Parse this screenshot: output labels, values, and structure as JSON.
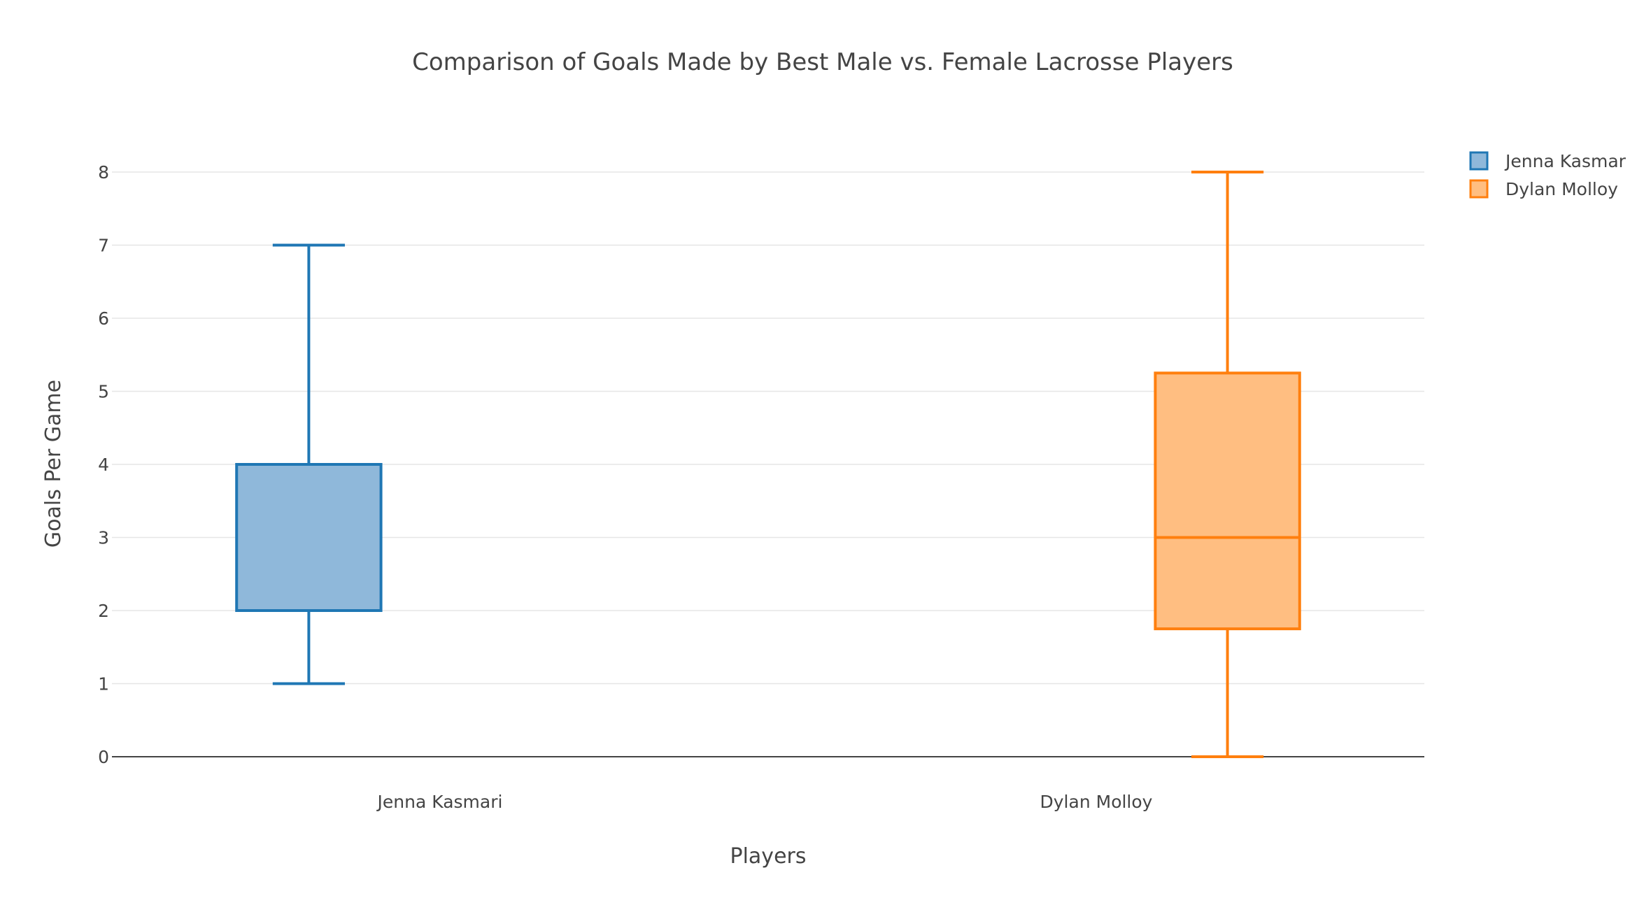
{
  "chart_data": {
    "type": "box",
    "title": "Comparison of Goals Made by Best Male vs. Female Lacrosse Players",
    "xlabel": "Players",
    "ylabel": "Goals Per Game",
    "ylim": [
      0,
      8
    ],
    "yticks": [
      "0",
      "1",
      "2",
      "3",
      "4",
      "5",
      "6",
      "7",
      "8"
    ],
    "grid": true,
    "legend_position": "top-right",
    "categories": [
      "Jenna Kasmari",
      "Dylan Molloy"
    ],
    "series": [
      {
        "name": "Jenna Kasmar",
        "color": "#1f77b4",
        "fill": "#8fb8da",
        "min": 1,
        "q1": 2,
        "median": 4,
        "q3": 4,
        "max": 7
      },
      {
        "name": "Dylan Molloy",
        "color": "#ff7f0e",
        "fill": "#ffbe81",
        "min": 0,
        "q1": 1.75,
        "median": 3,
        "q3": 5.25,
        "max": 8
      }
    ]
  }
}
